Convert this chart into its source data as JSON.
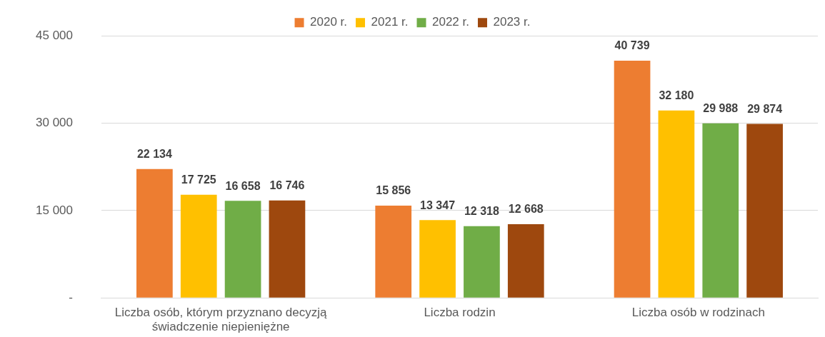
{
  "chart_data": {
    "type": "bar",
    "categories": [
      "Liczba osób, którym przyznano decyzją świadczenie niepieniężne",
      "Liczba rodzin",
      "Liczba osób w rodzinach"
    ],
    "series": [
      {
        "name": "2020 r.",
        "color": "#ed7d31",
        "values": [
          22134,
          15856,
          40739
        ],
        "value_labels": [
          "22 134",
          "15 856",
          "40 739"
        ]
      },
      {
        "name": "2021 r.",
        "color": "#ffc000",
        "values": [
          17725,
          13347,
          32180
        ],
        "value_labels": [
          "17 725",
          "13 347",
          "32 180"
        ]
      },
      {
        "name": "2022 r.",
        "color": "#70ad47",
        "values": [
          16658,
          12318,
          29988
        ],
        "value_labels": [
          "16 658",
          "12 318",
          "29 988"
        ]
      },
      {
        "name": "2023 r.",
        "color": "#9e480e",
        "values": [
          16746,
          12668,
          29874
        ],
        "value_labels": [
          "16 746",
          "12 668",
          "29 874"
        ]
      }
    ],
    "ylim": [
      0,
      45000
    ],
    "yticks": [
      {
        "value": 0,
        "label": "-"
      },
      {
        "value": 15000,
        "label": "15 000"
      },
      {
        "value": 30000,
        "label": "30 000"
      },
      {
        "value": 45000,
        "label": "45 000"
      }
    ],
    "grid": "y",
    "legend": "top"
  }
}
